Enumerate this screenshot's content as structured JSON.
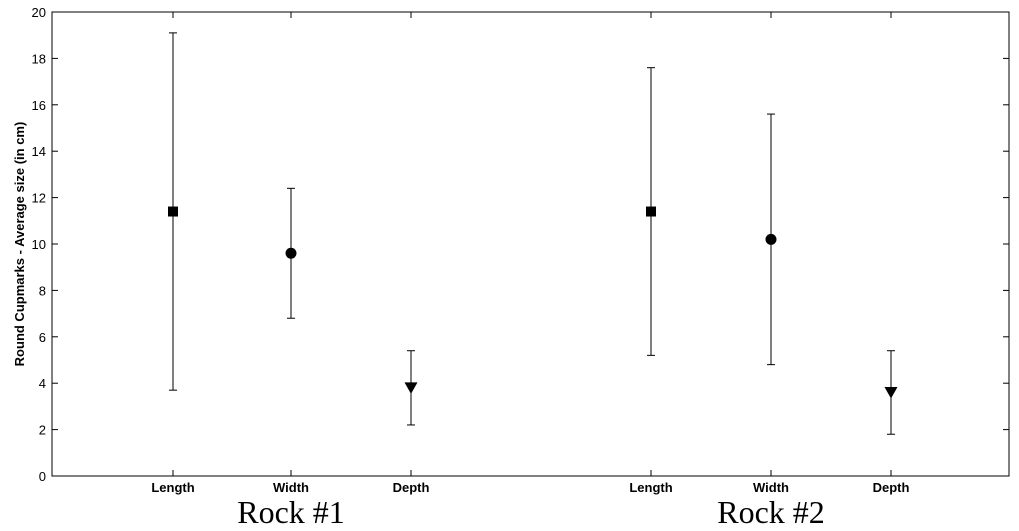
{
  "chart_data": {
    "type": "scatter",
    "ylabel": "Round Cupmarks - Average size (in cm)",
    "ylim": [
      0,
      20
    ],
    "yticks": [
      0,
      2,
      4,
      6,
      8,
      10,
      12,
      14,
      16,
      18,
      20
    ],
    "grid": false,
    "groups": [
      {
        "label": "Rock #1",
        "points": [
          {
            "category": "Length",
            "mean": 11.4,
            "low": 3.7,
            "high": 19.1,
            "marker": "square"
          },
          {
            "category": "Width",
            "mean": 9.6,
            "low": 6.8,
            "high": 12.4,
            "marker": "circle"
          },
          {
            "category": "Depth",
            "mean": 3.8,
            "low": 2.2,
            "high": 5.4,
            "marker": "triangle-down"
          }
        ]
      },
      {
        "label": "Rock #2",
        "points": [
          {
            "category": "Length",
            "mean": 11.4,
            "low": 5.2,
            "high": 17.6,
            "marker": "square"
          },
          {
            "category": "Width",
            "mean": 10.2,
            "low": 4.8,
            "high": 15.6,
            "marker": "circle"
          },
          {
            "category": "Depth",
            "mean": 3.6,
            "low": 1.8,
            "high": 5.4,
            "marker": "triangle-down"
          }
        ]
      }
    ]
  }
}
